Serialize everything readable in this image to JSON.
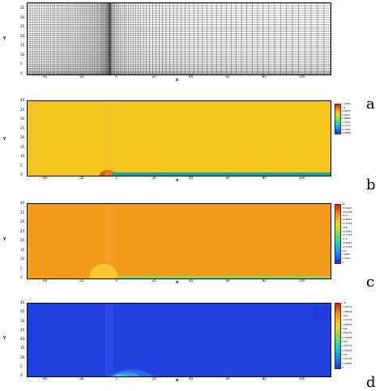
{
  "figure": {
    "panels": [
      {
        "id": "a",
        "label": "a",
        "x_axis_label": "x",
        "y_axis_label": "y",
        "x_ticks": [
          "-40",
          "-20",
          "0",
          "20",
          "40",
          "60",
          "80",
          "100"
        ],
        "y_ticks": [
          "0",
          "5",
          "10",
          "15",
          "20",
          "25",
          "30",
          "35"
        ],
        "legend": []
      },
      {
        "id": "b",
        "label": "b",
        "x_axis_label": "x",
        "y_axis_label": "y",
        "x_ticks": [
          "-40",
          "-20",
          "0",
          "20",
          "40",
          "60",
          "80",
          "100"
        ],
        "y_ticks": [
          "0",
          "5",
          "10",
          "15",
          "20",
          "25",
          "30",
          "35",
          "40"
        ],
        "legend": [
          "1.2436",
          "1.1",
          "0.9555",
          "0.8111",
          "0.6666",
          "0.5222",
          "0.3777",
          "0.2333",
          "0.0888"
        ],
        "colors": {
          "background": "#f4c21f",
          "bubble": "#e0551a",
          "wall": "#16a8a0"
        }
      },
      {
        "id": "c",
        "label": "c",
        "x_axis_label": "x",
        "y_axis_label": "y",
        "x_ticks": [
          "-40",
          "-20",
          "0",
          "20",
          "40",
          "60",
          "80",
          "100"
        ],
        "y_ticks": [
          "0",
          "5",
          "10",
          "15",
          "20",
          "25",
          "30",
          "35",
          "40"
        ],
        "legend": [
          "40",
          "37.4667",
          "34.9333",
          "32.4",
          "29.8667",
          "27.3333",
          "24.8",
          "22.2667",
          "19.7333",
          "17.2",
          "14.6667",
          "12.1333",
          "9.6",
          "7.0667",
          "4.5333",
          "2"
        ],
        "colors": {
          "background": "#f39a1a",
          "bubble": "#f7c633",
          "wall": "#8fd45a"
        }
      },
      {
        "id": "d",
        "label": "d",
        "x_axis_label": "x",
        "y_axis_label": "y",
        "x_ticks": [
          "-40",
          "-20",
          "0",
          "20",
          "40",
          "60",
          "80",
          "100"
        ],
        "y_ticks": [
          "0",
          "5",
          "10",
          "15",
          "20",
          "25",
          "30",
          "35",
          "40"
        ],
        "legend": [
          "1.6",
          "1.49333",
          "1.38667",
          "1.28",
          "1.17333",
          "1.06667",
          "0.96",
          "0.85333",
          "0.74667",
          "0.64",
          "0.53333",
          "0.42667",
          "0.32",
          "0.21333",
          "0.10667",
          "0"
        ],
        "colors": {
          "background": "#1f3fe0",
          "ring": "#3a8fe8",
          "inner": "#35d6c6"
        }
      }
    ]
  }
}
